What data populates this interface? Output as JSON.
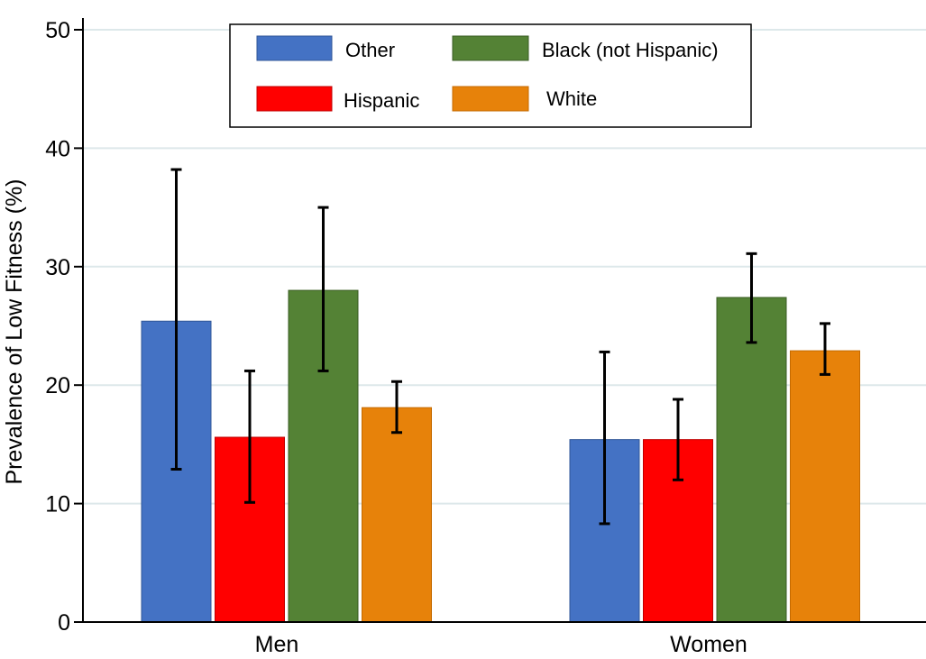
{
  "chart_data": {
    "type": "bar",
    "title": "",
    "xlabel": "",
    "ylabel": "Prevalence of Low Fitness (%)",
    "ylim": [
      0,
      50
    ],
    "yticks": [
      0,
      10,
      20,
      30,
      40,
      50
    ],
    "grid": true,
    "legend_position": "top-center",
    "categories": [
      "Men",
      "Women"
    ],
    "series": [
      {
        "name": "Other",
        "color": "#4472C4",
        "values": [
          25.4,
          15.4
        ],
        "ci_low": [
          12.9,
          8.3
        ],
        "ci_high": [
          38.2,
          22.8
        ]
      },
      {
        "name": "Hispanic",
        "color": "#FF0000",
        "values": [
          15.6,
          15.4
        ],
        "ci_low": [
          10.1,
          12.0
        ],
        "ci_high": [
          21.2,
          18.8
        ]
      },
      {
        "name": "Black (not Hispanic)",
        "color": "#548235",
        "values": [
          28.0,
          27.4
        ],
        "ci_low": [
          21.2,
          23.6
        ],
        "ci_high": [
          35.0,
          31.1
        ]
      },
      {
        "name": "White",
        "color": "#E7820A",
        "values": [
          18.1,
          22.9
        ],
        "ci_low": [
          16.0,
          20.9
        ],
        "ci_high": [
          20.3,
          25.2
        ]
      }
    ],
    "legend_order": [
      "Other",
      "Black (not Hispanic)",
      "Hispanic",
      "White"
    ]
  }
}
